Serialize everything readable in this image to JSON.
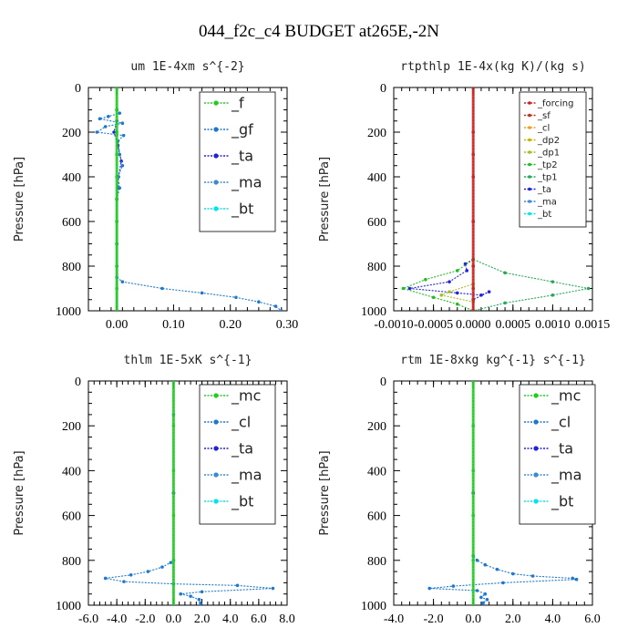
{
  "figure_title": "044_f2c_c4  BUDGET at265E,-2N",
  "chart_data": [
    {
      "type": "line",
      "title": "um  1E-4xm s^{-2}",
      "ylabel": "Pressure [hPa]",
      "xlim": [
        -0.05,
        0.3
      ],
      "ylim": [
        1000,
        0
      ],
      "xticks": [
        "0.00",
        "0.10",
        "0.20",
        "0.30"
      ],
      "xtick_values": [
        0,
        0.1,
        0.2,
        0.3
      ],
      "yticks": [
        "0",
        "200",
        "400",
        "600",
        "800",
        "1000"
      ],
      "legend": "top-right",
      "series": [
        {
          "name": "_f",
          "color": "#22cc22",
          "points": [
            [
              0,
              0
            ],
            [
              0,
              100
            ],
            [
              0,
              200
            ],
            [
              0,
              300
            ],
            [
              0,
              400
            ],
            [
              0,
              500
            ],
            [
              0,
              600
            ],
            [
              0,
              700
            ],
            [
              0,
              800
            ],
            [
              0,
              900
            ],
            [
              0,
              1000
            ]
          ]
        },
        {
          "name": "_gf",
          "color": "#1e78d0",
          "points": [
            [
              0,
              0
            ],
            [
              0,
              100
            ],
            [
              0.005,
              115
            ],
            [
              -0.015,
              130
            ],
            [
              -0.03,
              140
            ],
            [
              0.01,
              160
            ],
            [
              -0.02,
              175
            ],
            [
              -0.035,
              200
            ],
            [
              0.012,
              215
            ],
            [
              0.002,
              240
            ],
            [
              0.005,
              300
            ],
            [
              0.01,
              350
            ],
            [
              0.002,
              400
            ],
            [
              0.005,
              450
            ],
            [
              0,
              500
            ],
            [
              0,
              600
            ],
            [
              0,
              700
            ],
            [
              0,
              800
            ],
            [
              0,
              850
            ],
            [
              0.01,
              870
            ],
            [
              0.08,
              900
            ],
            [
              0.15,
              920
            ],
            [
              0.21,
              940
            ],
            [
              0.25,
              960
            ],
            [
              0.28,
              980
            ],
            [
              0.29,
              1000
            ]
          ]
        },
        {
          "name": "_ta",
          "color": "#2222dd",
          "points": [
            [
              0,
              0
            ],
            [
              0,
              100
            ],
            [
              0,
              150
            ],
            [
              -0.005,
              200
            ],
            [
              0.002,
              260
            ],
            [
              0.008,
              330
            ],
            [
              0.003,
              400
            ],
            [
              0.002,
              450
            ],
            [
              0,
              500
            ],
            [
              0,
              700
            ],
            [
              0,
              1000
            ]
          ]
        },
        {
          "name": "_ma",
          "color": "#3a8ad6",
          "points": [
            [
              0,
              0
            ],
            [
              0,
              500
            ],
            [
              0,
              1000
            ]
          ]
        },
        {
          "name": "_bt",
          "color": "#00e5ee",
          "points": [
            [
              0,
              0
            ],
            [
              0,
              500
            ],
            [
              0,
              1000
            ]
          ]
        }
      ]
    },
    {
      "type": "line",
      "title": "rtpthlp  1E-4x(kg K)/(kg s)",
      "ylabel": "Pressure [hPa]",
      "xlim": [
        -0.001,
        0.0015
      ],
      "ylim": [
        1000,
        0
      ],
      "xticks": [
        "-0.0010",
        "-0.0005",
        "0.0000",
        "0.0005",
        "0.0010",
        "0.0015"
      ],
      "xtick_values": [
        -0.001,
        -0.0005,
        0,
        0.0005,
        0.001,
        0.0015
      ],
      "yticks": [
        "0",
        "200",
        "400",
        "600",
        "800",
        "1000"
      ],
      "legend": "top-right",
      "series": [
        {
          "name": "_forcing",
          "color": "#cc2222",
          "points": [
            [
              0,
              0
            ],
            [
              0,
              200
            ],
            [
              0,
              400
            ],
            [
              0,
              600
            ],
            [
              0,
              800
            ],
            [
              0,
              1000
            ]
          ]
        },
        {
          "name": "_sf",
          "color": "#c0301a",
          "points": [
            [
              0,
              0
            ],
            [
              0,
              300
            ],
            [
              0,
              600
            ],
            [
              0,
              900
            ],
            [
              0,
              1000
            ]
          ]
        },
        {
          "name": "_cl",
          "color": "#f0a020",
          "points": [
            [
              0,
              0
            ],
            [
              0,
              800
            ],
            [
              0,
              1000
            ]
          ]
        },
        {
          "name": "_dp2",
          "color": "#c8b400",
          "points": [
            [
              0,
              0
            ],
            [
              0,
              800
            ],
            [
              0,
              1000
            ]
          ]
        },
        {
          "name": "_dp1",
          "color": "#a0c020",
          "points": [
            [
              0,
              0
            ],
            [
              0,
              880
            ],
            [
              -0.0003,
              915
            ],
            [
              -0.0004,
              930
            ],
            [
              0,
              960
            ],
            [
              0,
              1000
            ]
          ]
        },
        {
          "name": "_tp2",
          "color": "#22bb22",
          "points": [
            [
              0,
              0
            ],
            [
              0,
              770
            ],
            [
              -0.0002,
              820
            ],
            [
              -0.0006,
              860
            ],
            [
              -0.00088,
              900
            ],
            [
              -0.0005,
              940
            ],
            [
              -0.0002,
              970
            ],
            [
              0,
              1000
            ]
          ]
        },
        {
          "name": "_tp1",
          "color": "#22aa55",
          "points": [
            [
              0,
              0
            ],
            [
              0,
              770
            ],
            [
              0.0004,
              830
            ],
            [
              0.001,
              870
            ],
            [
              0.00145,
              900
            ],
            [
              0.001,
              930
            ],
            [
              0.0004,
              965
            ],
            [
              0,
              1000
            ]
          ]
        },
        {
          "name": "_ta",
          "color": "#2222dd",
          "points": [
            [
              0,
              0
            ],
            [
              0,
              770
            ],
            [
              -0.0001,
              790
            ],
            [
              -8e-05,
              820
            ],
            [
              -0.0003,
              870
            ],
            [
              -0.0008,
              900
            ],
            [
              -0.0002,
              920
            ],
            [
              0.0001,
              930
            ],
            [
              0.0002,
              915
            ],
            [
              0,
              950
            ],
            [
              0,
              1000
            ]
          ]
        },
        {
          "name": "_ma",
          "color": "#3a8ad6",
          "points": [
            [
              0,
              0
            ],
            [
              0,
              1000
            ]
          ]
        },
        {
          "name": "_bt",
          "color": "#00e5ee",
          "points": [
            [
              0,
              0
            ],
            [
              0,
              1000
            ]
          ]
        }
      ]
    },
    {
      "type": "line",
      "title": "thlm  1E-5xK s^{-1}",
      "ylabel": "Pressure [hPa]",
      "xlim": [
        -6,
        8
      ],
      "ylim": [
        1000,
        0
      ],
      "xticks": [
        "-6.0",
        "-4.0",
        "-2.0",
        "0.0",
        "2.0",
        "4.0",
        "6.0",
        "8.0"
      ],
      "xtick_values": [
        -6,
        -4,
        -2,
        0,
        2,
        4,
        6,
        8
      ],
      "yticks": [
        "0",
        "200",
        "400",
        "600",
        "800",
        "1000"
      ],
      "legend": "top-right",
      "series": [
        {
          "name": "_mc",
          "color": "#22cc22",
          "points": [
            [
              0,
              0
            ],
            [
              0,
              200
            ],
            [
              0,
              400
            ],
            [
              0,
              600
            ],
            [
              0,
              800
            ],
            [
              0,
              1000
            ]
          ]
        },
        {
          "name": "_cl",
          "color": "#1e78d0",
          "points": [
            [
              0,
              0
            ],
            [
              0,
              150
            ],
            [
              0,
              800
            ],
            [
              -0.2,
              810
            ],
            [
              -0.8,
              830
            ],
            [
              -1.8,
              850
            ],
            [
              -3,
              865
            ],
            [
              -4.8,
              880
            ],
            [
              -3.5,
              895
            ],
            [
              0,
              905
            ],
            [
              4.5,
              912
            ],
            [
              7,
              925
            ],
            [
              2,
              940
            ],
            [
              0.5,
              950
            ],
            [
              1.2,
              960
            ],
            [
              1.8,
              975
            ],
            [
              1.9,
              990
            ],
            [
              1.9,
              1000
            ]
          ]
        },
        {
          "name": "_ta",
          "color": "#2222dd",
          "points": [
            [
              0,
              0
            ],
            [
              0,
              500
            ],
            [
              0,
              1000
            ]
          ]
        },
        {
          "name": "_ma",
          "color": "#3a8ad6",
          "points": [
            [
              0,
              0
            ],
            [
              0,
              500
            ],
            [
              0,
              1000
            ]
          ]
        },
        {
          "name": "_bt",
          "color": "#00e5ee",
          "points": [
            [
              0,
              0
            ],
            [
              0,
              500
            ],
            [
              0,
              1000
            ]
          ]
        }
      ]
    },
    {
      "type": "line",
      "title": "rtm  1E-8xkg kg^{-1} s^{-1}",
      "ylabel": "Pressure [hPa]",
      "xlim": [
        -4,
        6
      ],
      "ylim": [
        1000,
        0
      ],
      "xticks": [
        "-4.0",
        "-2.0",
        "0.0",
        "2.0",
        "4.0",
        "6.0"
      ],
      "xtick_values": [
        -4,
        -2,
        0,
        2,
        4,
        6
      ],
      "yticks": [
        "0",
        "200",
        "400",
        "600",
        "800",
        "1000"
      ],
      "legend": "top-right",
      "series": [
        {
          "name": "_mc",
          "color": "#22cc22",
          "points": [
            [
              0,
              0
            ],
            [
              0,
              200
            ],
            [
              0,
              400
            ],
            [
              0,
              600
            ],
            [
              0,
              800
            ],
            [
              0,
              1000
            ]
          ]
        },
        {
          "name": "_cl",
          "color": "#1e78d0",
          "points": [
            [
              0,
              0
            ],
            [
              0,
              780
            ],
            [
              0.2,
              800
            ],
            [
              0.6,
              820
            ],
            [
              1.2,
              840
            ],
            [
              2,
              860
            ],
            [
              3,
              870
            ],
            [
              5,
              880
            ],
            [
              5.2,
              885
            ],
            [
              1.5,
              900
            ],
            [
              -1,
              915
            ],
            [
              -2.2,
              925
            ],
            [
              0.2,
              935
            ],
            [
              0.6,
              950
            ],
            [
              0.4,
              965
            ],
            [
              0.7,
              975
            ],
            [
              0.5,
              990
            ],
            [
              0.5,
              1000
            ]
          ]
        },
        {
          "name": "_ta",
          "color": "#2222dd",
          "points": [
            [
              0,
              0
            ],
            [
              0,
              500
            ],
            [
              0,
              1000
            ]
          ]
        },
        {
          "name": "_ma",
          "color": "#3a8ad6",
          "points": [
            [
              0,
              0
            ],
            [
              0,
              500
            ],
            [
              0,
              1000
            ]
          ]
        },
        {
          "name": "_bt",
          "color": "#00e5ee",
          "points": [
            [
              0,
              0
            ],
            [
              0,
              500
            ],
            [
              0,
              1000
            ]
          ]
        }
      ]
    }
  ]
}
